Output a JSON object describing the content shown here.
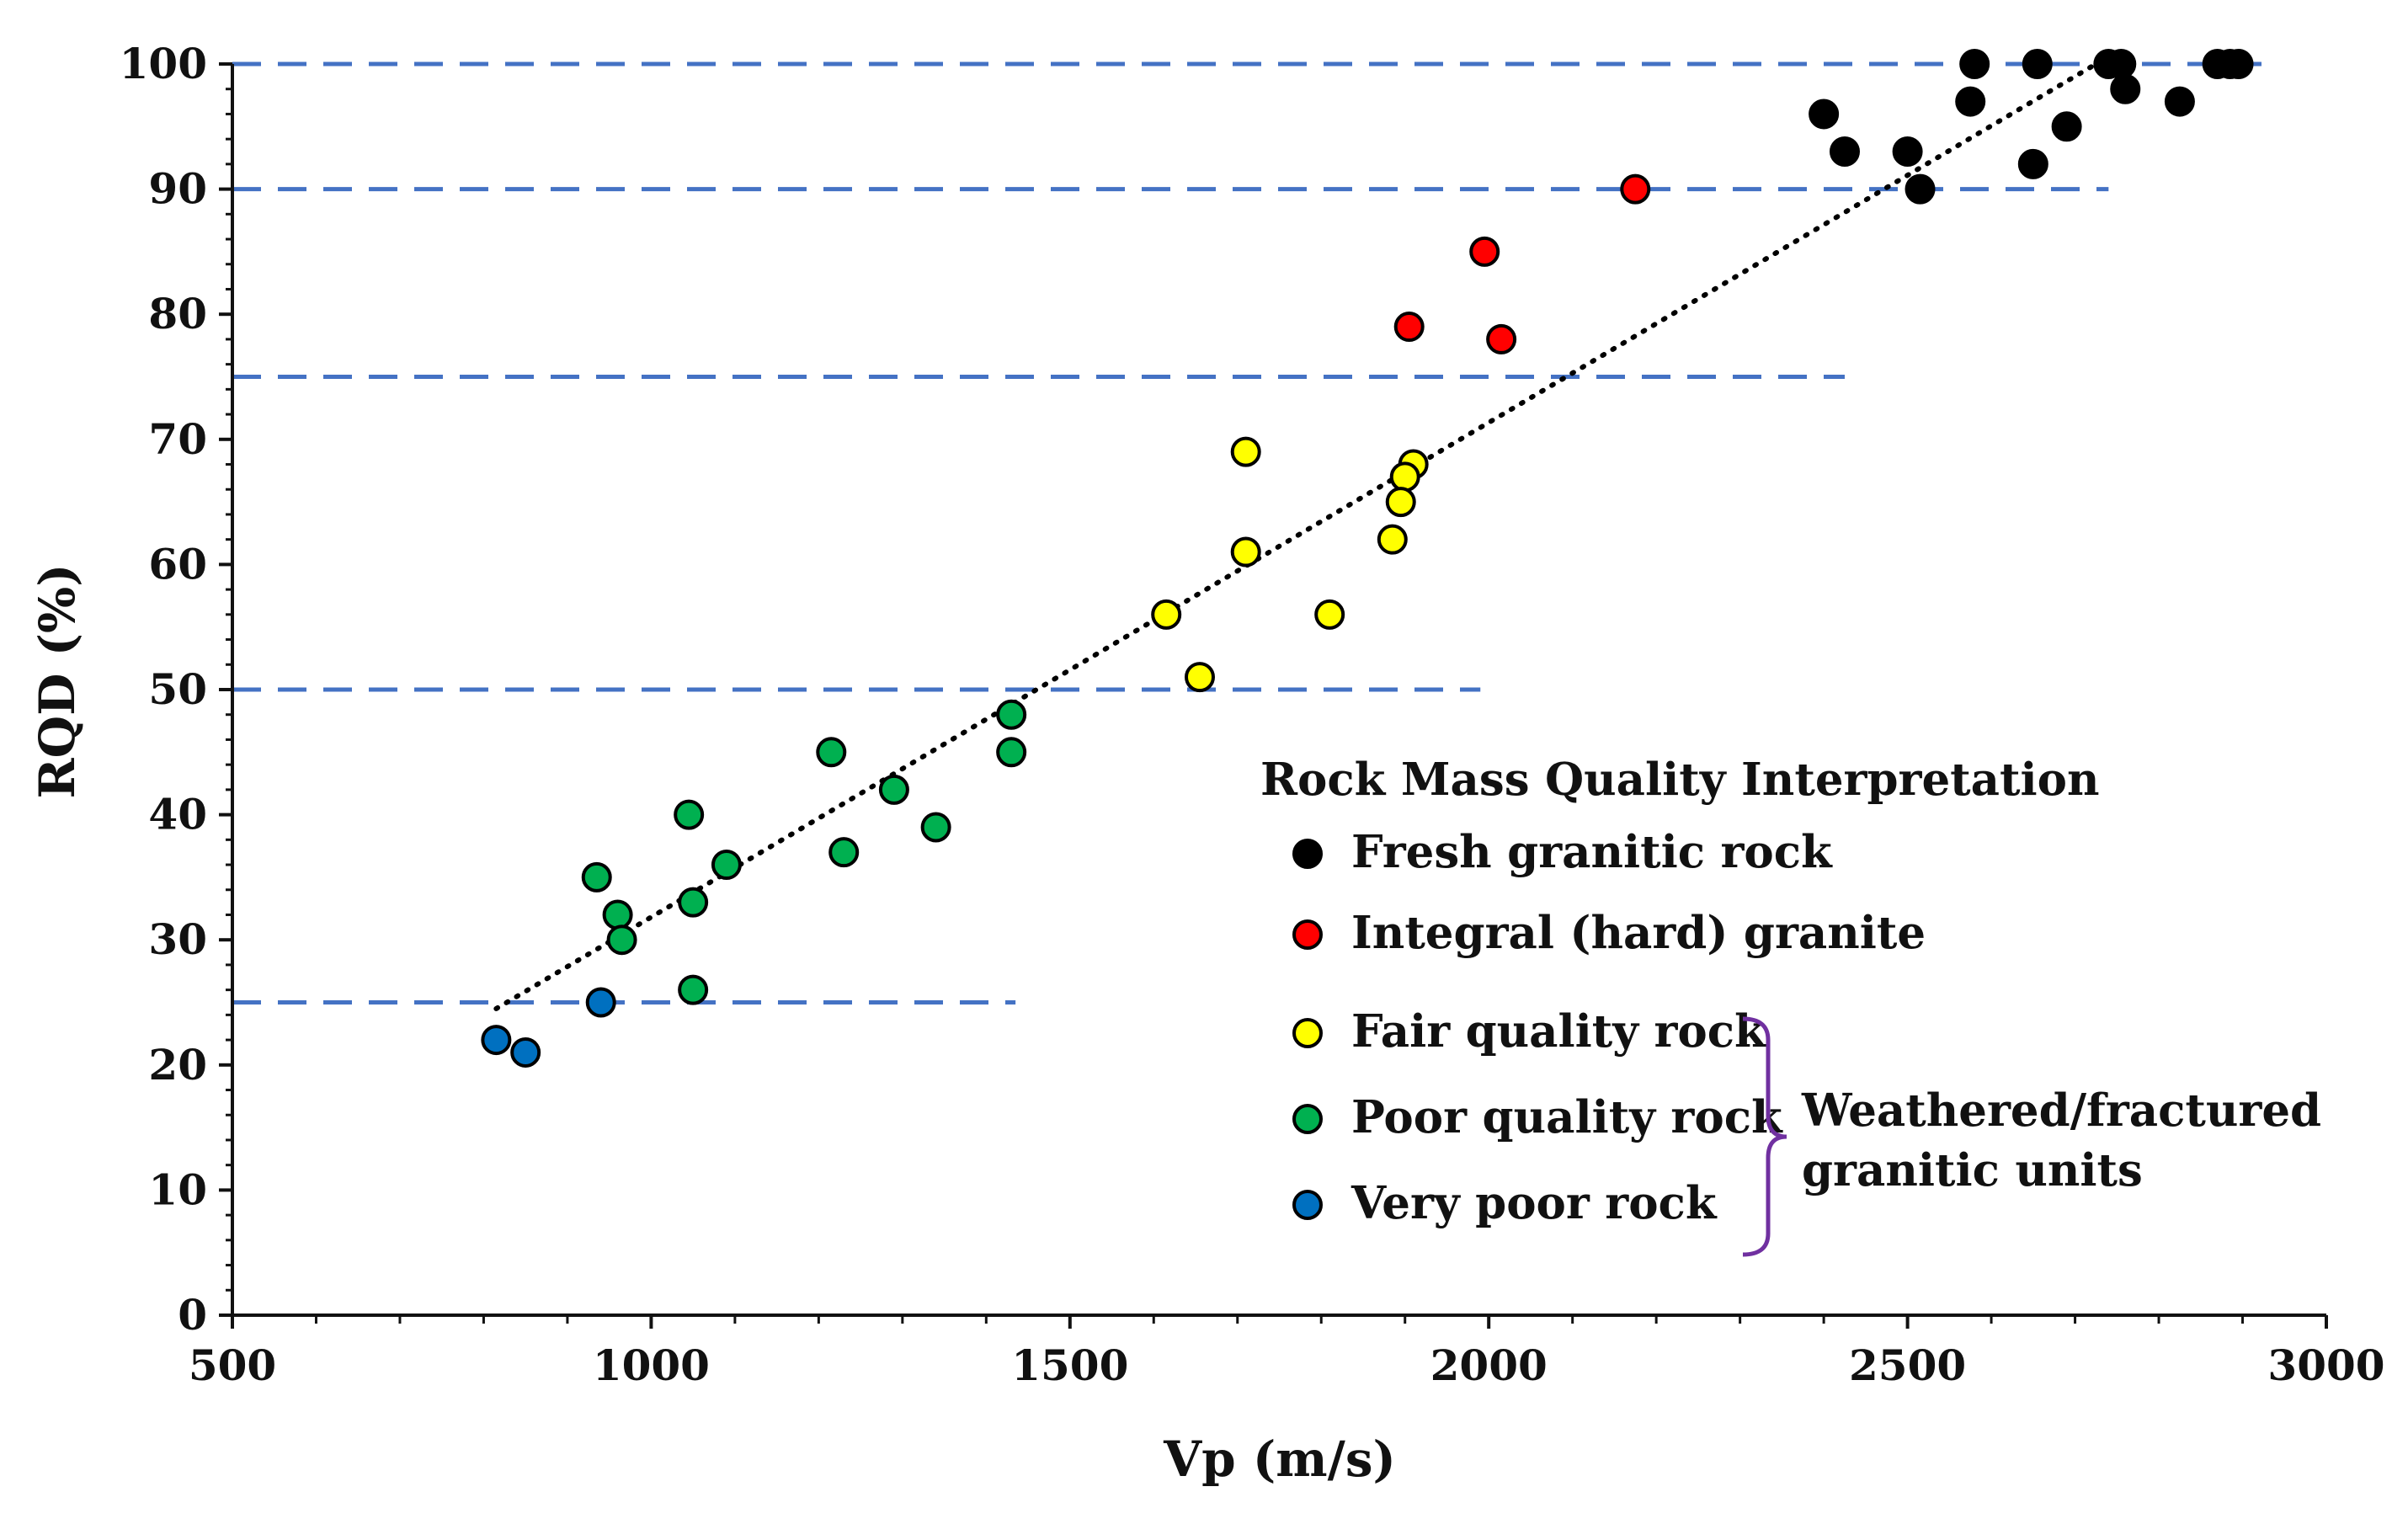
{
  "chart_data": {
    "type": "scatter",
    "xlabel": "Vp (m/s)",
    "ylabel": "RQD (%)",
    "xlim": [
      500,
      3000
    ],
    "ylim": [
      0,
      100
    ],
    "x_ticks": [
      500,
      1000,
      1500,
      2000,
      2500,
      3000
    ],
    "y_ticks": [
      0,
      10,
      20,
      30,
      40,
      50,
      60,
      70,
      80,
      90,
      100
    ],
    "x_minor_step": 100,
    "y_minor_step": 2,
    "threshold_lines": [
      {
        "y": 100,
        "x_start": 500,
        "x_end": 2940
      },
      {
        "y": 90,
        "x_start": 500,
        "x_end": 2740
      },
      {
        "y": 75,
        "x_start": 500,
        "x_end": 2425
      },
      {
        "y": 50,
        "x_start": 500,
        "x_end": 1990
      },
      {
        "y": 25,
        "x_start": 500,
        "x_end": 1435
      }
    ],
    "threshold_line_color": "#4472c4",
    "trendline": {
      "style": "dotted",
      "color": "#000000",
      "x": [
        815,
        2725
      ],
      "y": [
        24.5,
        100
      ]
    },
    "legend": {
      "title": "Rock Mass Quality Interpretation",
      "placement": "lower-right",
      "bracket_label": [
        "Weathered/fractured",
        "granitic units"
      ],
      "bracket_color": "#7030a0"
    },
    "series": [
      {
        "name": "Fresh granitic rock",
        "color": "#000000",
        "x": [
          2580,
          2655,
          2740,
          2755,
          2760,
          2870,
          2885,
          2895,
          2575,
          2400,
          2425,
          2500,
          2515,
          2650,
          2690,
          2825
        ],
        "y": [
          100,
          100,
          100,
          100,
          98,
          100,
          100,
          100,
          97,
          96,
          93,
          93,
          90,
          92,
          95,
          97
        ]
      },
      {
        "name": "Integral (hard) granite",
        "color": "#ff0000",
        "x": [
          2175,
          1995,
          1905,
          2015
        ],
        "y": [
          90,
          85,
          79,
          78
        ]
      },
      {
        "name": "Fair quality rock",
        "color": "#ffff00",
        "x": [
          1710,
          1910,
          1900,
          1895,
          1710,
          1885,
          1615,
          1810,
          1655
        ],
        "y": [
          69,
          68,
          67,
          65,
          61,
          62,
          56,
          56,
          51
        ]
      },
      {
        "name": "Poor quality rock",
        "color": "#00b050",
        "x": [
          1430,
          1430,
          1215,
          1290,
          1340,
          1045,
          1230,
          935,
          1090,
          1050,
          960,
          965,
          1050
        ],
        "y": [
          48,
          45,
          45,
          42,
          39,
          40,
          37,
          35,
          36,
          33,
          32,
          30,
          26
        ]
      },
      {
        "name": "Very poor rock",
        "color": "#0070c0",
        "x": [
          940,
          815,
          850
        ],
        "y": [
          25,
          22,
          21
        ]
      }
    ]
  }
}
